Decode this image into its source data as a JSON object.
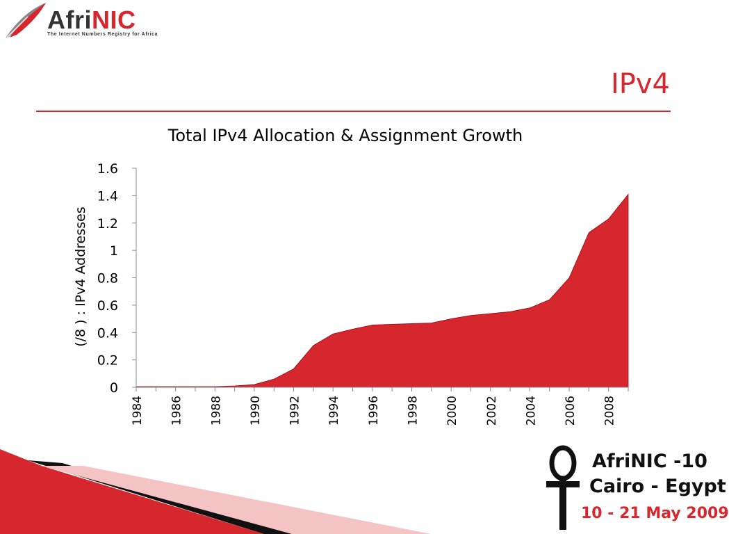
{
  "brand": {
    "logo_prefix": "Afri",
    "logo_suffix": "NIC",
    "tagline": "The Internet Numbers Registry for Africa",
    "accent_color": "#d6262e"
  },
  "slide": {
    "title": "IPv4"
  },
  "chart_data": {
    "type": "area",
    "title": "Total IPv4 Allocation & Assignment Growth",
    "xlabel": "",
    "ylabel": "(/8 ) : IPv4 Addresses",
    "x": [
      1984,
      1985,
      1986,
      1987,
      1988,
      1989,
      1990,
      1991,
      1992,
      1993,
      1994,
      1995,
      1996,
      1997,
      1998,
      1999,
      2000,
      2001,
      2002,
      2003,
      2004,
      2005,
      2006,
      2007,
      2008,
      2009
    ],
    "values": [
      0.005,
      0.005,
      0.005,
      0.005,
      0.005,
      0.01,
      0.02,
      0.06,
      0.135,
      0.305,
      0.39,
      0.425,
      0.455,
      0.46,
      0.465,
      0.47,
      0.5,
      0.525,
      0.538,
      0.552,
      0.58,
      0.64,
      0.8,
      1.13,
      1.23,
      1.41
    ],
    "x_tick_labels": [
      "1984",
      "1986",
      "1988",
      "1990",
      "1992",
      "1994",
      "1996",
      "1998",
      "2000",
      "2002",
      "2004",
      "2006",
      "2008"
    ],
    "y_tick_labels": [
      "0",
      "0.2",
      "0.4",
      "0.6",
      "0.8",
      "1",
      "1.2",
      "1.4",
      "1.6"
    ],
    "ylim": [
      0,
      1.6
    ],
    "grid": false,
    "legend": "none",
    "fill_color": "#d6262e"
  },
  "event": {
    "line1": "AfriNIC -10",
    "line2": "Cairo - Egypt",
    "line3": "10 - 21 May 2009"
  }
}
